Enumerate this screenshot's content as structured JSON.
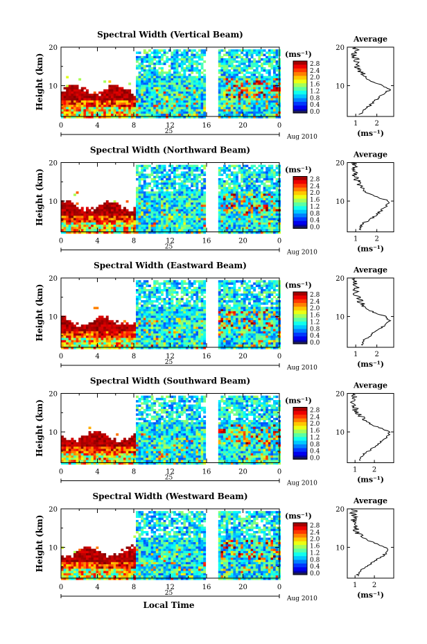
{
  "figure": {
    "xlabel": "Local Time",
    "date_label": "Aug 2010",
    "day_label": "25",
    "cbar_unit": "(ms⁻¹)",
    "avg_title": "Average",
    "avg_unit": "(ms⁻¹)"
  },
  "chart_data": [
    {
      "type": "heatmap",
      "title": "Spectral Width (Vertical Beam)",
      "xlabel": "Local Time",
      "ylabel": "Height (km)",
      "xlim": [
        0,
        24
      ],
      "ylim": [
        2,
        20
      ],
      "xticks": [
        "0",
        "4",
        "8",
        "12",
        "16",
        "20",
        "0"
      ],
      "yticks": [
        "10",
        "20"
      ],
      "colorbar": {
        "unit": "(ms⁻¹)",
        "min": 0.0,
        "max": 2.8,
        "ticks": [
          "2.8",
          "2.4",
          "2.0",
          "1.6",
          "1.2",
          "0.8",
          "0.4",
          "0.0"
        ]
      },
      "data_gap_hours": [
        15.9,
        17.1
      ],
      "average_profile": {
        "title": "Average",
        "xlabel": "(ms⁻¹)",
        "xticks": [
          "1",
          "2"
        ],
        "xlim": [
          0.6,
          2.8
        ],
        "height_km": [
          2.5,
          4,
          5,
          6,
          7,
          8,
          9,
          10,
          11,
          12,
          13,
          14,
          15,
          16,
          17,
          18,
          19,
          20
        ],
        "width_ms": [
          1.2,
          1.4,
          1.7,
          1.9,
          2.1,
          2.4,
          2.6,
          2.3,
          1.8,
          1.5,
          1.3,
          1.2,
          1.1,
          1.0,
          1.0,
          0.9,
          1.0,
          1.0
        ]
      }
    },
    {
      "type": "heatmap",
      "title": "Spectral Width (Northward Beam)",
      "xlabel": "Local Time",
      "ylabel": "Height (km)",
      "xlim": [
        0,
        24
      ],
      "ylim": [
        2,
        20
      ],
      "xticks": [
        "0",
        "4",
        "8",
        "12",
        "16",
        "20",
        "0"
      ],
      "yticks": [
        "10",
        "20"
      ],
      "colorbar": {
        "unit": "(ms⁻¹)",
        "min": 0.0,
        "max": 2.8,
        "ticks": [
          "2.8",
          "2.4",
          "2.0",
          "1.6",
          "1.2",
          "0.8",
          "0.4",
          "0.0"
        ]
      },
      "data_gap_hours": [
        15.9,
        17.1
      ],
      "average_profile": {
        "title": "Average",
        "xlabel": "(ms⁻¹)",
        "xticks": [
          "1",
          "2"
        ],
        "xlim": [
          0.6,
          2.8
        ],
        "height_km": [
          2.5,
          4,
          5,
          6,
          7,
          8,
          9,
          10,
          11,
          12,
          13,
          14,
          15,
          16,
          17,
          18,
          19,
          20
        ],
        "width_ms": [
          1.2,
          1.3,
          1.6,
          1.9,
          2.1,
          2.3,
          2.5,
          2.6,
          2.0,
          1.6,
          1.3,
          1.2,
          1.1,
          1.0,
          1.0,
          0.9,
          1.0,
          0.9
        ]
      }
    },
    {
      "type": "heatmap",
      "title": "Spectral Width (Eastward Beam)",
      "xlabel": "Local Time",
      "ylabel": "Height (km)",
      "xlim": [
        0,
        24
      ],
      "ylim": [
        2,
        20
      ],
      "xticks": [
        "0",
        "4",
        "8",
        "12",
        "16",
        "20",
        "0"
      ],
      "yticks": [
        "10",
        "20"
      ],
      "colorbar": {
        "unit": "(ms⁻¹)",
        "min": 0.0,
        "max": 2.8,
        "ticks": [
          "2.8",
          "2.4",
          "2.0",
          "1.6",
          "1.2",
          "0.8",
          "0.4",
          "0.0"
        ]
      },
      "data_gap_hours": [
        15.9,
        17.1
      ],
      "average_profile": {
        "title": "Average",
        "xlabel": "(ms⁻¹)",
        "xticks": [
          "1",
          "2"
        ],
        "xlim": [
          0.6,
          2.8
        ],
        "height_km": [
          2.5,
          4,
          5,
          6,
          7,
          8,
          9,
          10,
          11,
          12,
          13,
          14,
          15,
          16,
          17,
          18,
          19,
          20
        ],
        "width_ms": [
          1.3,
          1.4,
          1.7,
          1.9,
          2.2,
          2.4,
          2.6,
          2.4,
          1.9,
          1.5,
          1.3,
          1.2,
          1.1,
          1.0,
          1.0,
          1.0,
          0.9,
          1.0
        ]
      }
    },
    {
      "type": "heatmap",
      "title": "Spectral Width (Southward Beam)",
      "xlabel": "Local Time",
      "ylabel": "Height (km)",
      "xlim": [
        0,
        24
      ],
      "ylim": [
        2,
        20
      ],
      "xticks": [
        "0",
        "4",
        "8",
        "12",
        "16",
        "20",
        "0"
      ],
      "yticks": [
        "10",
        "20"
      ],
      "colorbar": {
        "unit": "(ms⁻¹)",
        "min": 0.0,
        "max": 2.8,
        "ticks": [
          "2.8",
          "2.4",
          "2.0",
          "1.6",
          "1.2",
          "0.8",
          "0.4",
          "0.0"
        ]
      },
      "data_gap_hours": [
        15.9,
        17.1
      ],
      "average_profile": {
        "title": "Average",
        "xlabel": "(ms⁻¹)",
        "xticks": [
          "1",
          "2"
        ],
        "xlim": [
          0.6,
          3.0
        ],
        "height_km": [
          2.5,
          4,
          5,
          6,
          7,
          8,
          9,
          10,
          11,
          12,
          13,
          14,
          15,
          16,
          17,
          18,
          19,
          20
        ],
        "width_ms": [
          1.2,
          1.4,
          1.7,
          2.0,
          2.2,
          2.5,
          2.7,
          2.8,
          2.3,
          1.8,
          1.5,
          1.3,
          1.1,
          1.0,
          1.0,
          0.9,
          1.0,
          0.9
        ]
      }
    },
    {
      "type": "heatmap",
      "title": "Spectral Width (Westward Beam)",
      "xlabel": "Local Time",
      "ylabel": "Height (km)",
      "xlim": [
        0,
        24
      ],
      "ylim": [
        2,
        20
      ],
      "xticks": [
        "0",
        "4",
        "8",
        "12",
        "16",
        "20",
        "0"
      ],
      "yticks": [
        "10",
        "20"
      ],
      "colorbar": {
        "unit": "(ms⁻¹)",
        "min": 0.0,
        "max": 2.8,
        "ticks": [
          "2.8",
          "2.4",
          "2.0",
          "1.6",
          "1.2",
          "0.8",
          "0.4",
          "0.0"
        ]
      },
      "data_gap_hours": [
        15.9,
        17.1
      ],
      "average_profile": {
        "title": "Average",
        "xlabel": "(ms⁻¹)",
        "xticks": [
          "1",
          "2"
        ],
        "xlim": [
          0.6,
          3.0
        ],
        "height_km": [
          2.5,
          4,
          5,
          6,
          7,
          8,
          9,
          10,
          11,
          12,
          13,
          14,
          15,
          16,
          17,
          18,
          19,
          20
        ],
        "width_ms": [
          1.1,
          1.3,
          1.6,
          1.9,
          2.2,
          2.5,
          2.7,
          2.6,
          2.1,
          1.6,
          1.3,
          1.1,
          1.0,
          1.0,
          0.9,
          1.0,
          0.9,
          1.0
        ]
      }
    }
  ]
}
